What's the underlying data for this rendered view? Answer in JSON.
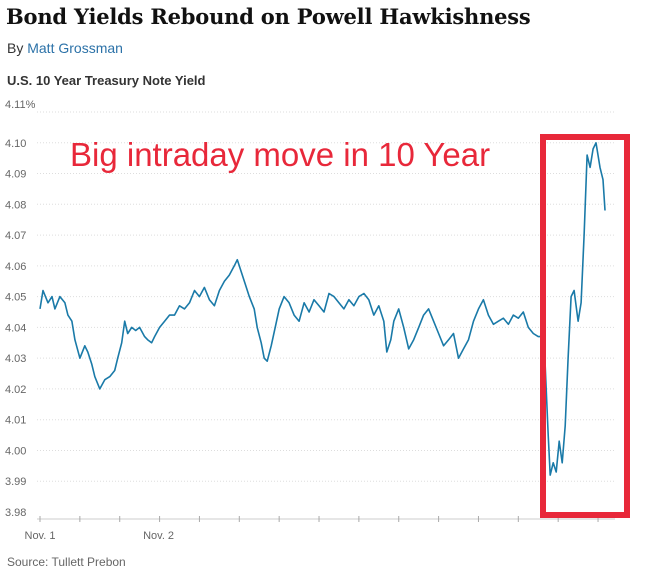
{
  "headline": "Bond Yields Rebound on Powell Hawkishness",
  "byline": {
    "prefix": "By",
    "author": "Matt Grossman"
  },
  "source": "Source: Tullett Prebon",
  "colors": {
    "line": "#1a7aa8",
    "annotation": "#e8283a",
    "grid": "#dddddd",
    "author_link": "#2c72a8"
  },
  "chart_data": {
    "type": "line",
    "title": "U.S. 10 Year Treasury Note Yield",
    "xlabel": "",
    "ylabel": "",
    "ylim": [
      3.98,
      4.11
    ],
    "grid": "horizontal dotted",
    "y_ticks": [
      {
        "value": 4.11,
        "label": "4.11%"
      },
      {
        "value": 4.1,
        "label": "4.10"
      },
      {
        "value": 4.09,
        "label": "4.09"
      },
      {
        "value": 4.08,
        "label": "4.08"
      },
      {
        "value": 4.07,
        "label": "4.07"
      },
      {
        "value": 4.06,
        "label": "4.06"
      },
      {
        "value": 4.05,
        "label": "4.05"
      },
      {
        "value": 4.04,
        "label": "4.04"
      },
      {
        "value": 4.03,
        "label": "4.03"
      },
      {
        "value": 4.02,
        "label": "4.02"
      },
      {
        "value": 4.01,
        "label": "4.01"
      },
      {
        "value": 4.0,
        "label": "4.00"
      },
      {
        "value": 3.99,
        "label": "3.99"
      },
      {
        "value": 3.98,
        "label": "3.98"
      }
    ],
    "x_labels": [
      {
        "index": 0,
        "label": "Nov. 1"
      },
      {
        "index": 119,
        "label": "Nov. 2"
      }
    ],
    "x_range": [
      0,
      570
    ],
    "series": [
      {
        "x": [
          0,
          3,
          8,
          12,
          15,
          20,
          25,
          28,
          32,
          35,
          40,
          45,
          48,
          52,
          55,
          60,
          65,
          70,
          75,
          78,
          82,
          85,
          88,
          92,
          96,
          100,
          105,
          108,
          112,
          115,
          120,
          125,
          130,
          135,
          140,
          145,
          150,
          155,
          160,
          165,
          170,
          175,
          180,
          185,
          190,
          195,
          198,
          202,
          206,
          210,
          215,
          218,
          222,
          225,
          228,
          232,
          236,
          240,
          245,
          250,
          255,
          260,
          265,
          270,
          275,
          280,
          285,
          290,
          295,
          300,
          305,
          310,
          315,
          320,
          325,
          330,
          335,
          340,
          345,
          348,
          352,
          355,
          360,
          365,
          370,
          375,
          380,
          385,
          390,
          395,
          400,
          405,
          410,
          415,
          420,
          425,
          430,
          435,
          440,
          445,
          450,
          455,
          460,
          465,
          470,
          475,
          480,
          485,
          490,
          495,
          500,
          503,
          506,
          510,
          512,
          515,
          518,
          521,
          524,
          527,
          530,
          533,
          536,
          540,
          543,
          546,
          549,
          552,
          555,
          558,
          562,
          565,
          567
        ],
        "y": [
          4.046,
          4.052,
          4.048,
          4.05,
          4.046,
          4.05,
          4.048,
          4.044,
          4.042,
          4.036,
          4.03,
          4.034,
          4.032,
          4.028,
          4.024,
          4.02,
          4.023,
          4.024,
          4.026,
          4.03,
          4.035,
          4.042,
          4.038,
          4.04,
          4.039,
          4.04,
          4.037,
          4.036,
          4.035,
          4.037,
          4.04,
          4.042,
          4.044,
          4.044,
          4.047,
          4.046,
          4.048,
          4.052,
          4.05,
          4.053,
          4.049,
          4.047,
          4.052,
          4.055,
          4.057,
          4.06,
          4.062,
          4.058,
          4.054,
          4.05,
          4.046,
          4.04,
          4.035,
          4.03,
          4.029,
          4.034,
          4.04,
          4.046,
          4.05,
          4.048,
          4.044,
          4.042,
          4.048,
          4.045,
          4.049,
          4.047,
          4.045,
          4.051,
          4.05,
          4.048,
          4.046,
          4.049,
          4.047,
          4.05,
          4.051,
          4.049,
          4.044,
          4.047,
          4.042,
          4.032,
          4.036,
          4.042,
          4.046,
          4.04,
          4.033,
          4.036,
          4.04,
          4.044,
          4.046,
          4.042,
          4.038,
          4.034,
          4.036,
          4.038,
          4.03,
          4.033,
          4.036,
          4.042,
          4.046,
          4.049,
          4.044,
          4.041,
          4.042,
          4.043,
          4.041,
          4.044,
          4.043,
          4.045,
          4.04,
          4.038,
          4.037,
          4.037,
          4.035,
          4.005,
          3.992,
          3.996,
          3.993,
          4.003,
          3.996,
          4.008,
          4.03,
          4.05,
          4.052,
          4.042,
          4.048,
          4.07,
          4.096,
          4.092,
          4.098,
          4.1,
          4.092,
          4.088,
          4.078
        ]
      }
    ]
  },
  "annotation": {
    "text": "Big intraday move in 10 Year"
  }
}
